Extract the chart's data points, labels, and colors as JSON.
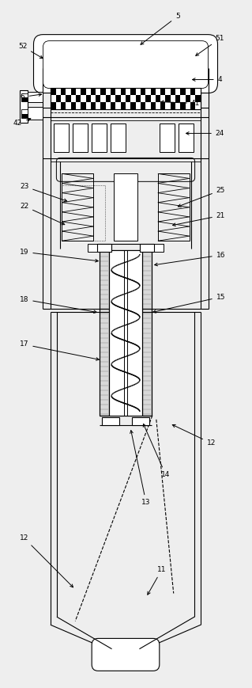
{
  "fig_width": 3.19,
  "fig_height": 8.69,
  "dpi": 100,
  "bg_color": "#eeeeee",
  "line_color": "#000000"
}
